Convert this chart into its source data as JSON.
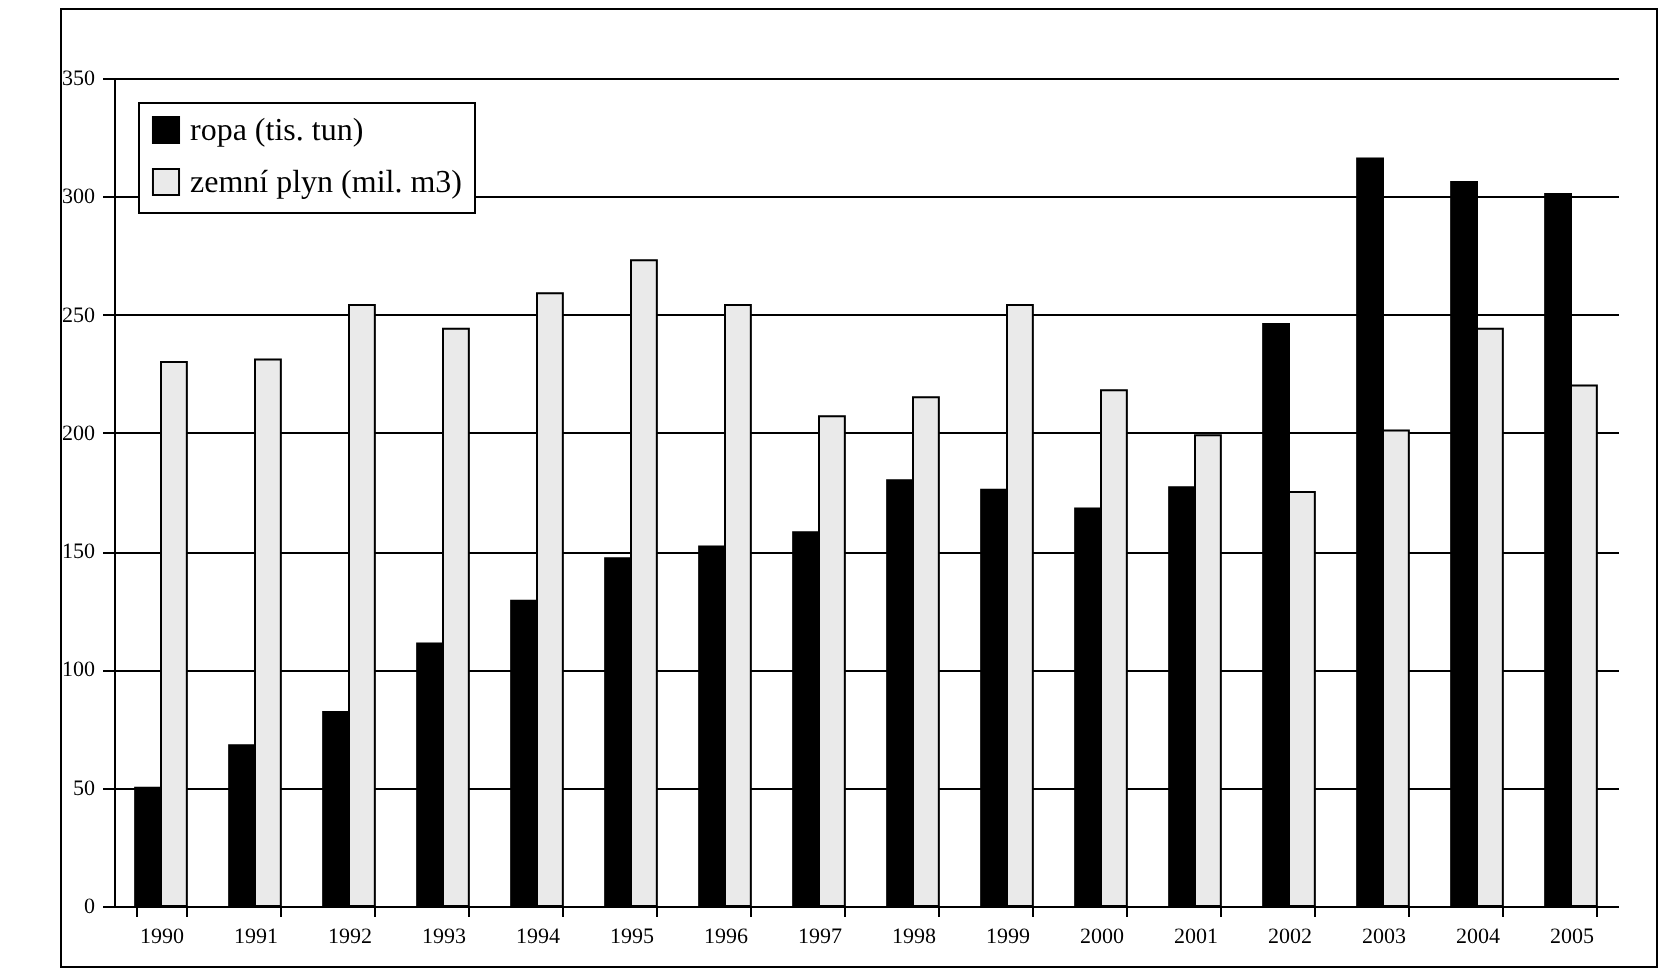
{
  "chart_data": {
    "type": "bar",
    "categories": [
      "1990",
      "1991",
      "1992",
      "1993",
      "1994",
      "1995",
      "1996",
      "1997",
      "1998",
      "1999",
      "2000",
      "2001",
      "2002",
      "2003",
      "2004",
      "2005"
    ],
    "series": [
      {
        "name": "ropa (tis. tun)",
        "color": "#000000",
        "values": [
          50,
          68,
          82,
          111,
          129,
          147,
          152,
          158,
          180,
          176,
          168,
          177,
          246,
          316,
          306,
          301
        ]
      },
      {
        "name": "zemní plyn (mil. m3)",
        "color": "#eaeaea",
        "values": [
          230,
          231,
          254,
          244,
          259,
          273,
          254,
          207,
          215,
          254,
          218,
          199,
          175,
          201,
          244,
          220
        ]
      }
    ],
    "ylim": [
      0,
      350
    ],
    "yticks": [
      0,
      50,
      100,
      150,
      200,
      250,
      300,
      350
    ],
    "grid": "y",
    "legend": "top left"
  }
}
